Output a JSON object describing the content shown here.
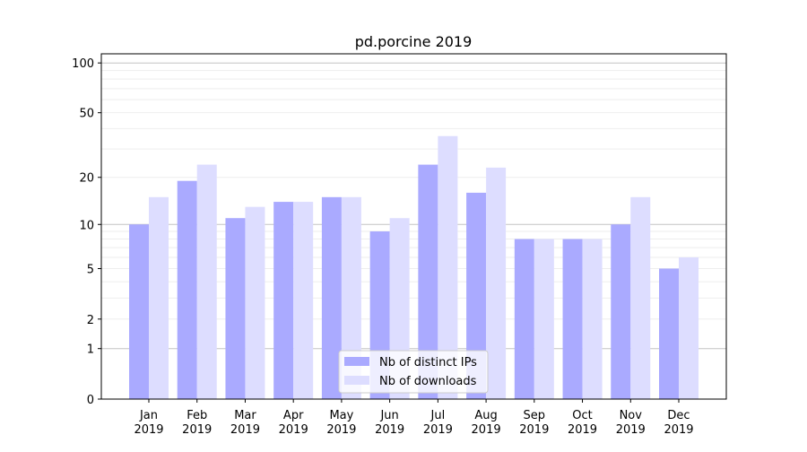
{
  "chart_data": {
    "type": "bar",
    "title": "pd.porcine 2019",
    "xlabel": "",
    "ylabel": "",
    "yscale": "log(1+x)",
    "ylim": [
      0,
      110
    ],
    "yticks": [
      0,
      1,
      2,
      5,
      10,
      20,
      50,
      100
    ],
    "grid": true,
    "legend_position": "bottom-center",
    "categories": [
      "Jan\n2019",
      "Feb\n2019",
      "Mar\n2019",
      "Apr\n2019",
      "May\n2019",
      "Jun\n2019",
      "Jul\n2019",
      "Aug\n2019",
      "Sep\n2019",
      "Oct\n2019",
      "Nov\n2019",
      "Dec\n2019"
    ],
    "series": [
      {
        "name": "Nb of distinct IPs",
        "color": "#aaaaff",
        "values": [
          10,
          19,
          11,
          14,
          15,
          9,
          24,
          16,
          8,
          8,
          10,
          5
        ]
      },
      {
        "name": "Nb of downloads",
        "color": "#ddddff",
        "values": [
          15,
          24,
          13,
          14,
          15,
          11,
          36,
          23,
          8,
          8,
          15,
          6
        ]
      }
    ]
  }
}
